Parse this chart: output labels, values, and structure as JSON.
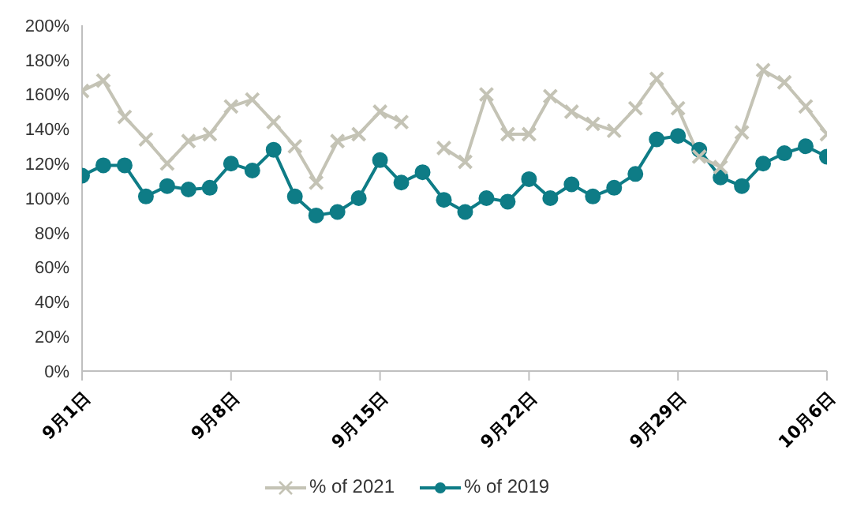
{
  "chart_data": {
    "type": "line",
    "x": [
      "--09-01",
      "--09-02",
      "--09-03",
      "--09-04",
      "--09-05",
      "--09-06",
      "--09-07",
      "--09-08",
      "--09-09",
      "--09-10",
      "--09-11",
      "--09-12",
      "--09-13",
      "--09-14",
      "--09-15",
      "--09-16",
      "--09-17",
      "--09-18",
      "--09-19",
      "--09-20",
      "--09-21",
      "--09-22",
      "--09-23",
      "--09-24",
      "--09-25",
      "--09-26",
      "--09-27",
      "--09-28",
      "--09-29",
      "--09-30",
      "--10-01",
      "--10-02",
      "--10-03",
      "--10-04",
      "--10-05",
      "--10-06"
    ],
    "series": [
      {
        "name": "% of 2021",
        "color": "#c4c3b5",
        "marker": "cross",
        "values": [
          162,
          168,
          147,
          134,
          120,
          133,
          137,
          153,
          157,
          144,
          130,
          109,
          133,
          137,
          150,
          144,
          null,
          129,
          121,
          160,
          137,
          137,
          159,
          150,
          143,
          139,
          152,
          169,
          152,
          124,
          118,
          138,
          174,
          167,
          153,
          137
        ]
      },
      {
        "name": "% of 2019",
        "color": "#0e7c86",
        "marker": "circle",
        "values": [
          113,
          119,
          119,
          101,
          107,
          105,
          106,
          120,
          116,
          128,
          101,
          90,
          92,
          100,
          122,
          109,
          115,
          99,
          92,
          100,
          98,
          111,
          100,
          108,
          101,
          106,
          114,
          134,
          136,
          128,
          112,
          107,
          120,
          126,
          130,
          124
        ]
      }
    ],
    "xticks": [
      {
        "value": "--09-01",
        "label": "9月1日"
      },
      {
        "value": "--09-08",
        "label": "9月8日"
      },
      {
        "value": "--09-15",
        "label": "9月15日"
      },
      {
        "value": "--09-22",
        "label": "9月22日"
      },
      {
        "value": "--09-29",
        "label": "9月29日"
      },
      {
        "value": "--10-06",
        "label": "10月6日"
      }
    ],
    "xlim": [
      "--09-01",
      "--10-06"
    ],
    "ylim": [
      0,
      200
    ],
    "yticks": [
      {
        "value": 0,
        "label": "0%"
      },
      {
        "value": 20,
        "label": "20%"
      },
      {
        "value": 40,
        "label": "40%"
      },
      {
        "value": 60,
        "label": "60%"
      },
      {
        "value": 80,
        "label": "80%"
      },
      {
        "value": 100,
        "label": "100%"
      },
      {
        "value": 120,
        "label": "120%"
      },
      {
        "value": 140,
        "label": "140%"
      },
      {
        "value": 160,
        "label": "160%"
      },
      {
        "value": 180,
        "label": "180%"
      },
      {
        "value": 200,
        "label": "200%"
      }
    ],
    "grid": false,
    "legend": "bottom",
    "line_style": "solid"
  }
}
